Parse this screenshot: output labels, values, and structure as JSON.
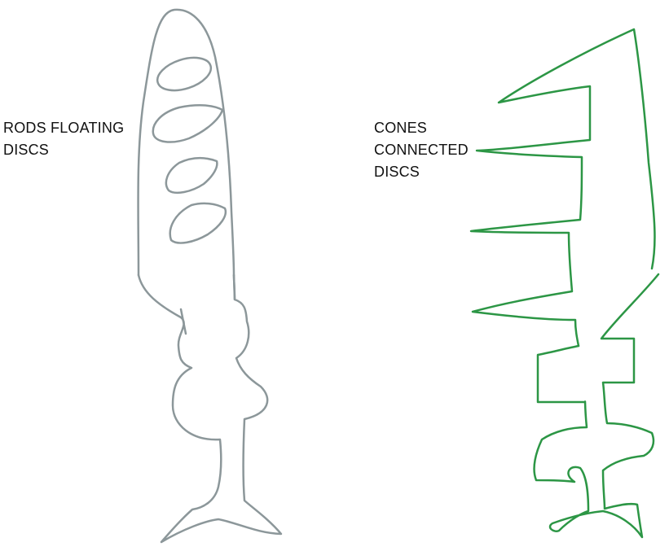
{
  "labels": {
    "rod": {
      "lines": [
        "RODS FLOATING",
        "DISCS"
      ]
    },
    "cone": {
      "lines": [
        "CONES",
        "CONNECTED",
        "DISCS"
      ]
    }
  },
  "colors": {
    "rod_stroke": "#8c979a",
    "cone_stroke": "#2c9645",
    "text": "#111111"
  }
}
